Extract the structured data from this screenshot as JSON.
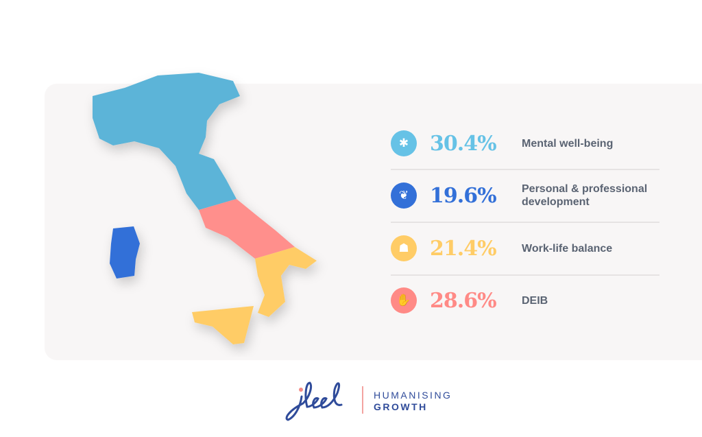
{
  "items": [
    {
      "value": "30.4%",
      "label": "Mental well-being",
      "color": "#66c2e6",
      "icon": "head-icon"
    },
    {
      "value": "19.6%",
      "label": "Personal & professional development",
      "color": "#3370d8",
      "icon": "leaves-icon"
    },
    {
      "value": "21.4%",
      "label": "Work-life balance",
      "color": "#ffcc66",
      "icon": "stacked-stones-icon"
    },
    {
      "value": "28.6%",
      "label": "DEIB",
      "color": "#ff8a86",
      "icon": "hands-icon"
    }
  ],
  "brand": {
    "logo": "ifeel",
    "tagline_1": "HUMANISING",
    "tagline_2": "GROWTH"
  }
}
